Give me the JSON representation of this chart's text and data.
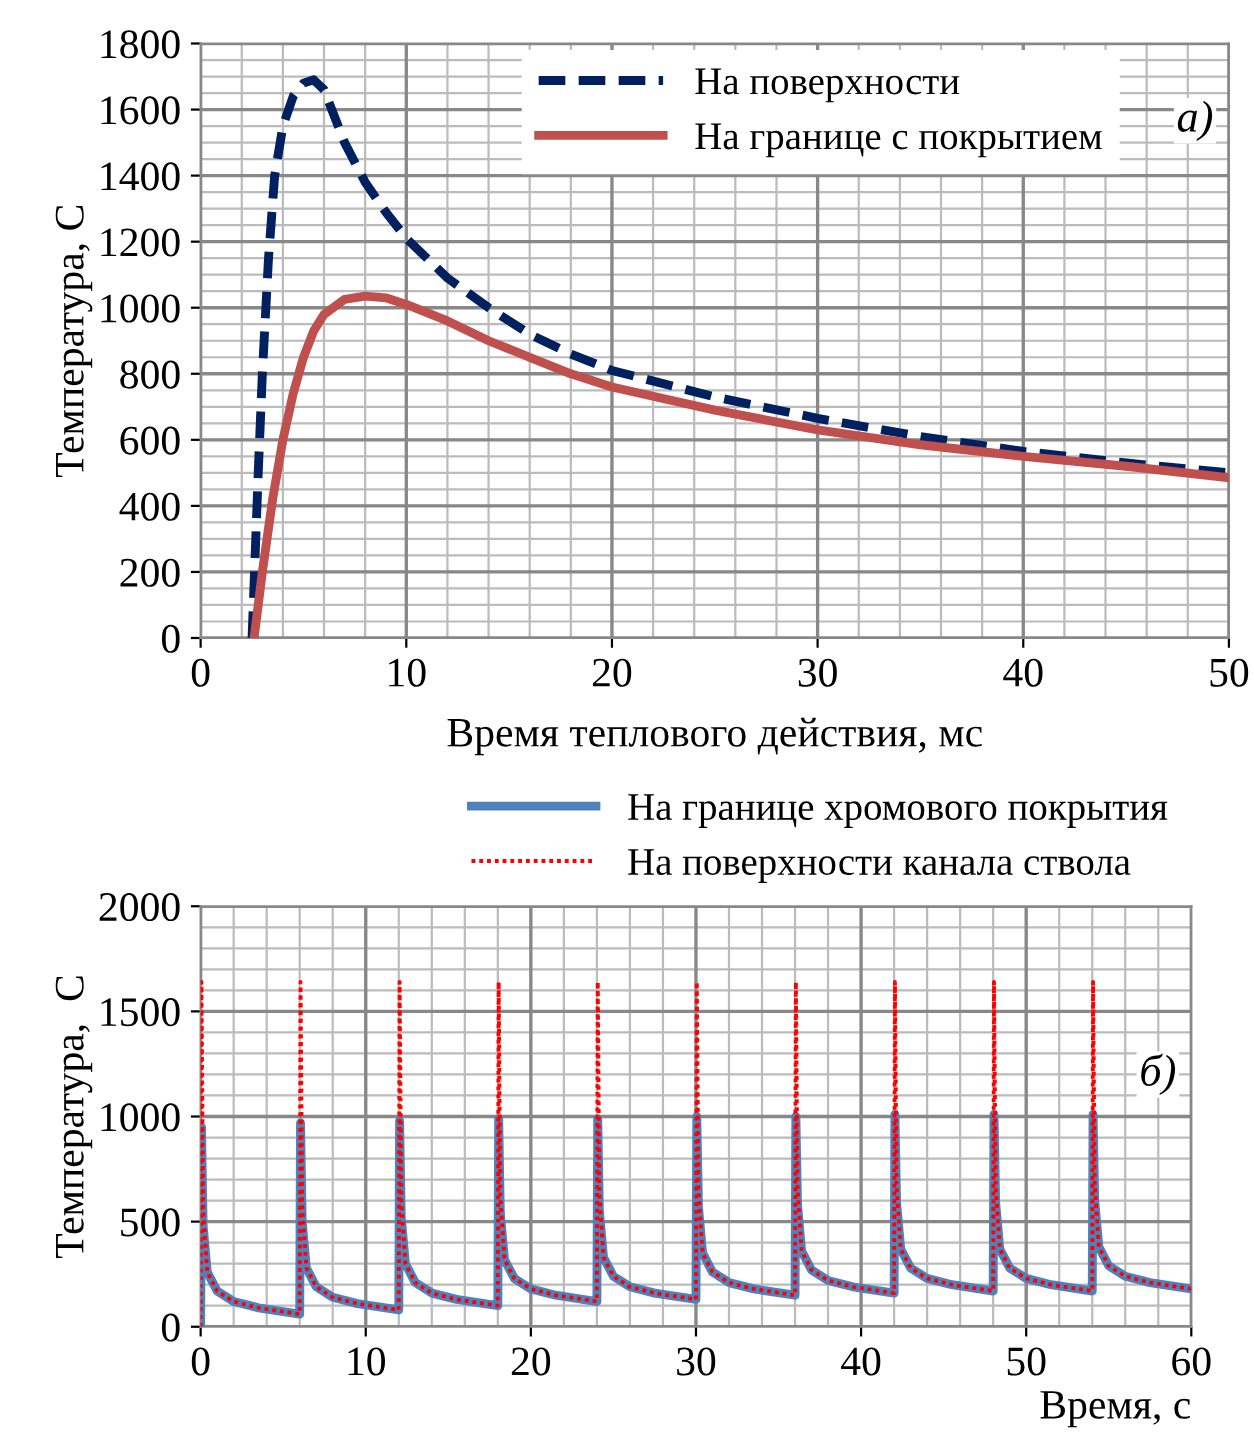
{
  "chart_data": [
    {
      "type": "line",
      "xlabel": "Время теплового действия, мс",
      "ylabel": "Температура, С",
      "xlim": [
        0,
        50
      ],
      "ylim": [
        0,
        1800
      ],
      "xticks": [
        0,
        10,
        20,
        30,
        40,
        50
      ],
      "yticks": [
        0,
        200,
        400,
        600,
        800,
        1000,
        1200,
        1400,
        1600,
        1800
      ],
      "grid": true,
      "legend": "top right",
      "annotations": [
        "а)"
      ],
      "series": [
        {
          "name": "На поверхности",
          "color": "#002060",
          "line_style": "dashed",
          "x": [
            2.5,
            2.8,
            3,
            3.3,
            3.6,
            4,
            4.5,
            5,
            5.5,
            6,
            6.5,
            7,
            8,
            9,
            10,
            12,
            14,
            16,
            18,
            20,
            25,
            30,
            35,
            40,
            45,
            50
          ],
          "values": [
            0,
            500,
            800,
            1150,
            1400,
            1550,
            1640,
            1680,
            1690,
            1660,
            1580,
            1500,
            1380,
            1290,
            1210,
            1090,
            1000,
            920,
            860,
            810,
            730,
            665,
            610,
            565,
            530,
            500
          ]
        },
        {
          "name": "На границе с покрытием",
          "color": "#c0504d",
          "line_style": "solid",
          "x": [
            2.6,
            3,
            3.5,
            4,
            4.5,
            5,
            5.5,
            6,
            7,
            8,
            9,
            10,
            12,
            14,
            16,
            18,
            20,
            25,
            30,
            35,
            40,
            45,
            50
          ],
          "values": [
            0,
            200,
            420,
            600,
            740,
            850,
            930,
            980,
            1025,
            1035,
            1030,
            1010,
            960,
            900,
            850,
            800,
            760,
            690,
            630,
            585,
            550,
            520,
            485
          ]
        }
      ]
    },
    {
      "type": "line",
      "xlabel": "Время, с",
      "ylabel": "Температура,  С",
      "xlim": [
        0,
        60
      ],
      "ylim": [
        0,
        2000
      ],
      "xticks": [
        0,
        10,
        20,
        30,
        40,
        50,
        60
      ],
      "yticks": [
        0,
        500,
        1000,
        1500,
        2000
      ],
      "grid": true,
      "legend": "top right",
      "annotations": [
        "б)"
      ],
      "series": [
        {
          "name": "На границе хромового покрытия",
          "color": "#4f81bd",
          "line_style": "solid",
          "x": [
            0,
            0.05,
            0.15,
            0.4,
            1,
            2,
            3.5,
            6,
            6.05,
            6.15,
            6.4,
            7,
            8,
            9.5,
            12,
            12.05,
            12.15,
            12.4,
            13,
            14,
            15.5,
            18,
            18.05,
            18.15,
            18.4,
            19,
            20,
            21.5,
            24,
            24.05,
            24.15,
            24.4,
            25,
            26,
            27.5,
            30,
            30.05,
            30.15,
            30.4,
            31,
            32,
            33.5,
            36,
            36.05,
            36.15,
            36.4,
            37,
            38,
            39.5,
            42,
            42.05,
            42.15,
            42.4,
            43,
            44,
            45.5,
            48,
            48.05,
            48.15,
            48.4,
            49,
            50,
            51.5,
            54,
            54.05,
            54.15,
            54.4,
            55,
            56,
            57.5,
            60
          ],
          "values": [
            0,
            950,
            480,
            260,
            170,
            120,
            90,
            60,
            970,
            500,
            280,
            190,
            140,
            110,
            80,
            980,
            520,
            300,
            210,
            160,
            130,
            100,
            990,
            540,
            320,
            230,
            180,
            150,
            120,
            990,
            550,
            330,
            240,
            190,
            160,
            130,
            1000,
            570,
            350,
            260,
            210,
            180,
            150,
            1000,
            580,
            360,
            270,
            220,
            190,
            160,
            1010,
            590,
            370,
            280,
            230,
            200,
            170,
            1010,
            590,
            370,
            280,
            230,
            200,
            170,
            1010,
            600,
            380,
            290,
            240,
            210,
            180
          ]
        },
        {
          "name": "На поверхности канала ствола",
          "color": "#ff0000",
          "line_style": "dotted",
          "x": [
            0,
            0.05,
            0.15,
            0.4,
            1,
            2,
            3.5,
            6,
            6.05,
            6.15,
            6.4,
            7,
            8,
            9.5,
            12,
            12.05,
            12.15,
            12.4,
            13,
            14,
            15.5,
            18,
            18.05,
            18.15,
            18.4,
            19,
            20,
            21.5,
            24,
            24.05,
            24.15,
            24.4,
            25,
            26,
            27.5,
            30,
            30.05,
            30.15,
            30.4,
            31,
            32,
            33.5,
            36,
            36.05,
            36.15,
            36.4,
            37,
            38,
            39.5,
            42,
            42.05,
            42.15,
            42.4,
            43,
            44,
            45.5,
            48,
            48.05,
            48.15,
            48.4,
            49,
            50,
            51.5,
            54,
            54.05,
            54.15,
            54.4,
            55,
            56,
            57.5,
            60
          ],
          "values": [
            0,
            1640,
            560,
            260,
            170,
            120,
            90,
            60,
            1640,
            580,
            280,
            190,
            140,
            110,
            80,
            1640,
            600,
            300,
            210,
            160,
            130,
            100,
            1640,
            620,
            320,
            230,
            180,
            150,
            120,
            1640,
            630,
            330,
            240,
            190,
            160,
            130,
            1640,
            650,
            350,
            260,
            210,
            180,
            150,
            1640,
            660,
            360,
            270,
            220,
            190,
            160,
            1640,
            670,
            370,
            280,
            230,
            200,
            170,
            1640,
            670,
            370,
            280,
            230,
            200,
            170,
            1640,
            680,
            380,
            290,
            240,
            210,
            180
          ]
        }
      ]
    }
  ]
}
